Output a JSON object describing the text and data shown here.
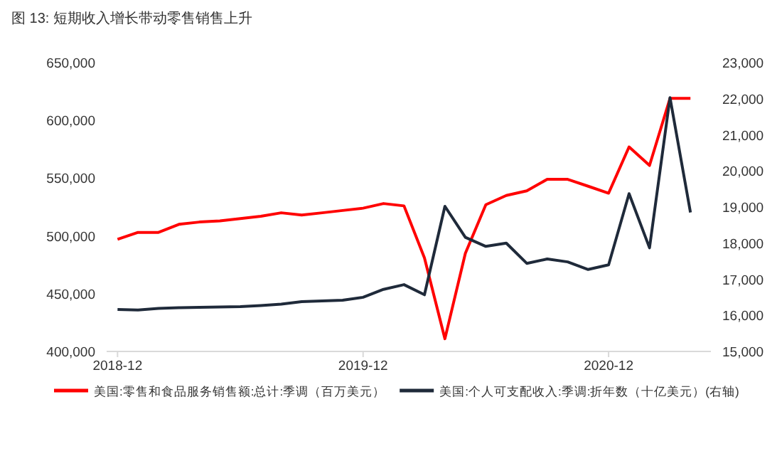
{
  "chart_data": {
    "type": "line",
    "title": "图 13: 短期收入增长带动零售销售上升",
    "x": [
      "2018-12",
      "2019-01",
      "2019-02",
      "2019-03",
      "2019-04",
      "2019-05",
      "2019-06",
      "2019-07",
      "2019-08",
      "2019-09",
      "2019-10",
      "2019-11",
      "2019-12",
      "2020-01",
      "2020-02",
      "2020-03",
      "2020-04",
      "2020-05",
      "2020-06",
      "2020-07",
      "2020-08",
      "2020-09",
      "2020-10",
      "2020-11",
      "2020-12",
      "2021-01",
      "2021-02",
      "2021-03",
      "2021-04"
    ],
    "series": [
      {
        "name": "美国:零售和食品服务销售额:总计:季调（百万美元）",
        "color": "#ff0000",
        "values": [
          497000,
          503000,
          503000,
          510000,
          512000,
          513000,
          515000,
          517000,
          520000,
          518000,
          520000,
          522000,
          524000,
          528000,
          526000,
          481000,
          411000,
          485000,
          527000,
          535000,
          539000,
          549000,
          549000,
          543000,
          537000,
          577000,
          561000,
          619000,
          619000
        ]
      },
      {
        "name": "美国:个人可支配收入:季调:折年数（十亿美元）(右轴)",
        "color": "#1f2a3a",
        "axis": "y2",
        "values": [
          16160,
          16150,
          16190,
          16210,
          16220,
          16230,
          16240,
          16270,
          16310,
          16380,
          16400,
          16420,
          16500,
          16720,
          16850,
          16570,
          19020,
          18160,
          17910,
          18000,
          17440,
          17560,
          17480,
          17270,
          17400,
          19370,
          17870,
          22030,
          18850
        ]
      }
    ],
    "xlim": [
      "2018-11-15",
      "2021-05-01"
    ],
    "xticks": [
      {
        "value": "2018-12",
        "label": "2018-12"
      },
      {
        "value": "2019-12",
        "label": "2019-12"
      },
      {
        "value": "2020-12",
        "label": "2020-12"
      }
    ],
    "ylim": [
      400000,
      650000
    ],
    "yticks": [
      {
        "value": 400000,
        "label": "400,000"
      },
      {
        "value": 450000,
        "label": "450,000"
      },
      {
        "value": 500000,
        "label": "500,000"
      },
      {
        "value": 550000,
        "label": "550,000"
      },
      {
        "value": 600000,
        "label": "600,000"
      },
      {
        "value": 650000,
        "label": "650,000"
      }
    ],
    "y2lim": [
      15000,
      23000
    ],
    "y2ticks": [
      {
        "value": 15000,
        "label": "15,000"
      },
      {
        "value": 16000,
        "label": "16,000"
      },
      {
        "value": 17000,
        "label": "17,000"
      },
      {
        "value": 18000,
        "label": "18,000"
      },
      {
        "value": 19000,
        "label": "19,000"
      },
      {
        "value": 20000,
        "label": "20,000"
      },
      {
        "value": 21000,
        "label": "21,000"
      },
      {
        "value": 22000,
        "label": "22,000"
      },
      {
        "value": 23000,
        "label": "23,000"
      }
    ],
    "legend": "bottom"
  }
}
